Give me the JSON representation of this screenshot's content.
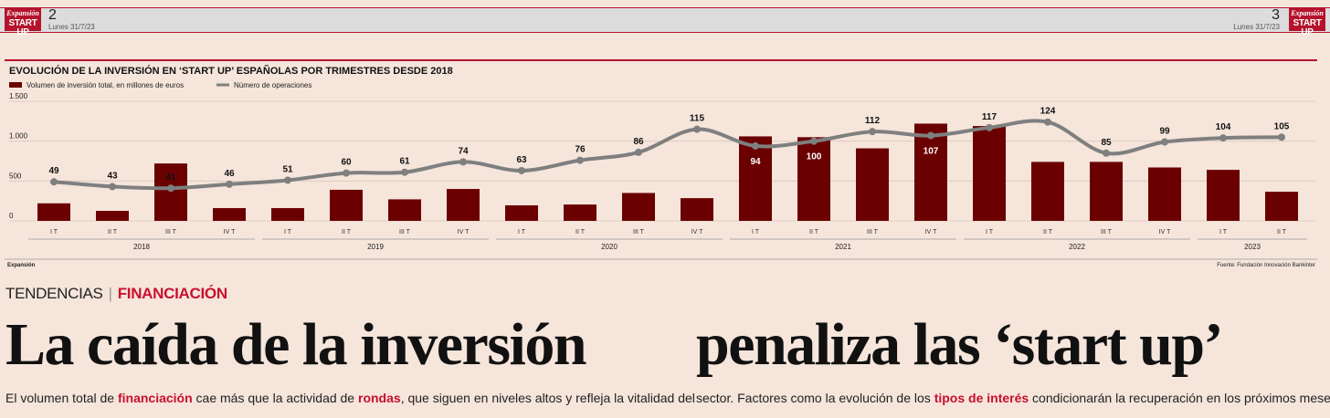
{
  "header": {
    "left": {
      "brand": "Expansión",
      "section": "START UP",
      "page": "2",
      "date": "Lunes 31/7/23"
    },
    "right": {
      "brand": "Expansión",
      "section": "START UP",
      "page": "3",
      "date": "Lunes 31/7/23"
    }
  },
  "chart_data": {
    "type": "bar-line",
    "title": "EVOLUCIÓN DE LA INVERSIÓN EN ‘START UP’ ESPAÑOLAS POR TRIMESTRES DESDE 2018",
    "groups": [
      {
        "label": "2018",
        "categories": [
          "I T",
          "II T",
          "III T",
          "IV T"
        ]
      },
      {
        "label": "2019",
        "categories": [
          "I T",
          "II T",
          "III T",
          "IV T"
        ]
      },
      {
        "label": "2020",
        "categories": [
          "I T",
          "II T",
          "III T",
          "IV T"
        ]
      },
      {
        "label": "2021",
        "categories": [
          "I T",
          "II T",
          "III T",
          "IV T"
        ]
      },
      {
        "label": "2022",
        "categories": [
          "I T",
          "II T",
          "III T",
          "IV T"
        ]
      },
      {
        "label": "2023",
        "categories": [
          "I T",
          "II T"
        ]
      }
    ],
    "series": [
      {
        "name": "Volumen de inversión total, en millones de euros",
        "color": "#6b0000",
        "values": [
          220,
          125,
          720,
          160,
          160,
          390,
          270,
          400,
          195,
          205,
          350,
          285,
          1060,
          1050,
          910,
          1220,
          1190,
          740,
          740,
          670,
          640,
          365
        ]
      },
      {
        "name": "Número de operaciones",
        "color": "#7f7f7f",
        "axis": "y2",
        "values": [
          49,
          43,
          41,
          46,
          51,
          60,
          61,
          74,
          63,
          76,
          86,
          115,
          94,
          100,
          112,
          107,
          117,
          124,
          85,
          99,
          104,
          105
        ]
      }
    ],
    "ylim": [
      0,
      1500
    ],
    "yticks": [
      0,
      500,
      {
        "value": 1000,
        "label": "1.000"
      },
      {
        "value": 1500,
        "label": "1.500"
      }
    ],
    "y2lim": [
      0,
      150
    ],
    "grid": true
  },
  "source": {
    "left": "Expansión",
    "right": "Fuente: Fundación Innovación Bankinter"
  },
  "section": {
    "kicker": "TENDENCIAS",
    "topic": "FINANCIACIÓN"
  },
  "headline": [
    "La caída de la inversión",
    "penaliza las ‘start up’"
  ],
  "body": [
    [
      {
        "text": "El volumen total de "
      },
      {
        "text": "financiación",
        "emphasis": true
      },
      {
        "text": " cae más que la actividad de "
      },
      {
        "text": "rondas",
        "emphasis": true
      },
      {
        "text": ", que siguen en niveles altos y refleja la vitalidad del"
      }
    ],
    [
      {
        "text": "sector. Factores como la evolución de los "
      },
      {
        "text": "tipos de interés",
        "emphasis": true
      },
      {
        "text": " condicionarán la recuperación en los próximos meses."
      }
    ]
  ]
}
